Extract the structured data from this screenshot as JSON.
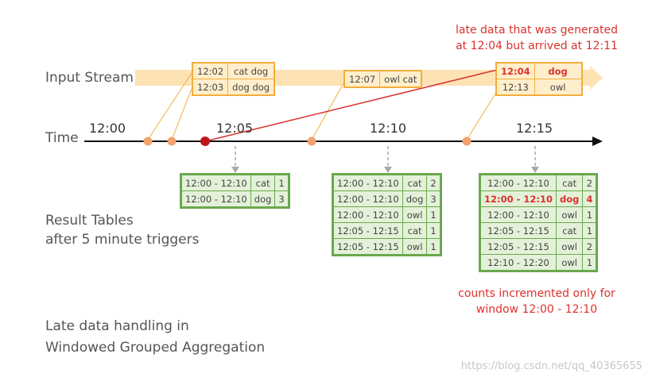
{
  "labels": {
    "input_stream": "Input Stream",
    "time": "Time",
    "result_tables_line1": "Result Tables",
    "result_tables_line2": "after 5 minute triggers",
    "caption_line1": "Late data handling in",
    "caption_line2": "Windowed Grouped Aggregation"
  },
  "time_ticks": [
    "12:00",
    "12:05",
    "12:10",
    "12:15"
  ],
  "stream_boxes": [
    {
      "rows": [
        {
          "time": "12:02",
          "words": "cat dog"
        },
        {
          "time": "12:03",
          "words": "dog dog"
        }
      ]
    },
    {
      "rows": [
        {
          "time": "12:07",
          "words": "owl cat"
        }
      ]
    },
    {
      "rows": [
        {
          "time": "12:04",
          "words": "dog",
          "late": true
        },
        {
          "time": "12:13",
          "words": "owl"
        }
      ]
    }
  ],
  "late_note": {
    "line1": "late data that was generated",
    "line2": "at 12:04 but arrived at 12:11"
  },
  "result_tables": [
    {
      "rows": [
        {
          "window": "12:00 - 12:10",
          "word": "cat",
          "count": "1"
        },
        {
          "window": "12:00 - 12:10",
          "word": "dog",
          "count": "3"
        }
      ]
    },
    {
      "rows": [
        {
          "window": "12:00 - 12:10",
          "word": "cat",
          "count": "2"
        },
        {
          "window": "12:00 - 12:10",
          "word": "dog",
          "count": "3"
        },
        {
          "window": "12:00 - 12:10",
          "word": "owl",
          "count": "1"
        },
        {
          "window": "12:05 - 12:15",
          "word": "cat",
          "count": "1"
        },
        {
          "window": "12:05 - 12:15",
          "word": "owl",
          "count": "1"
        }
      ]
    },
    {
      "rows": [
        {
          "window": "12:00 - 12:10",
          "word": "cat",
          "count": "2"
        },
        {
          "window": "12:00 - 12:10",
          "word": "dog",
          "count": "4",
          "highlight": true
        },
        {
          "window": "12:00 - 12:10",
          "word": "owl",
          "count": "1"
        },
        {
          "window": "12:05 - 12:15",
          "word": "cat",
          "count": "1"
        },
        {
          "window": "12:05 - 12:15",
          "word": "owl",
          "count": "2"
        },
        {
          "window": "12:10 - 12:20",
          "word": "owl",
          "count": "1"
        }
      ]
    }
  ],
  "increment_note": {
    "line1": "counts incremented only for",
    "line2": "window 12:00 - 12:10"
  },
  "watermark": "https://blog.csdn.net/qq_40365655",
  "colors": {
    "stream_band": "#fde3b4",
    "stream_box_fill": "#ffeecb",
    "stream_box_border": "#f4ad3b",
    "event_dot": "#f4a26d",
    "late_dot": "#c0161a",
    "late_line": "#d9312d",
    "result_fill": "#e4f1d9",
    "result_border": "#6aa84f",
    "dashed_arrow": "#a8a8a8"
  }
}
